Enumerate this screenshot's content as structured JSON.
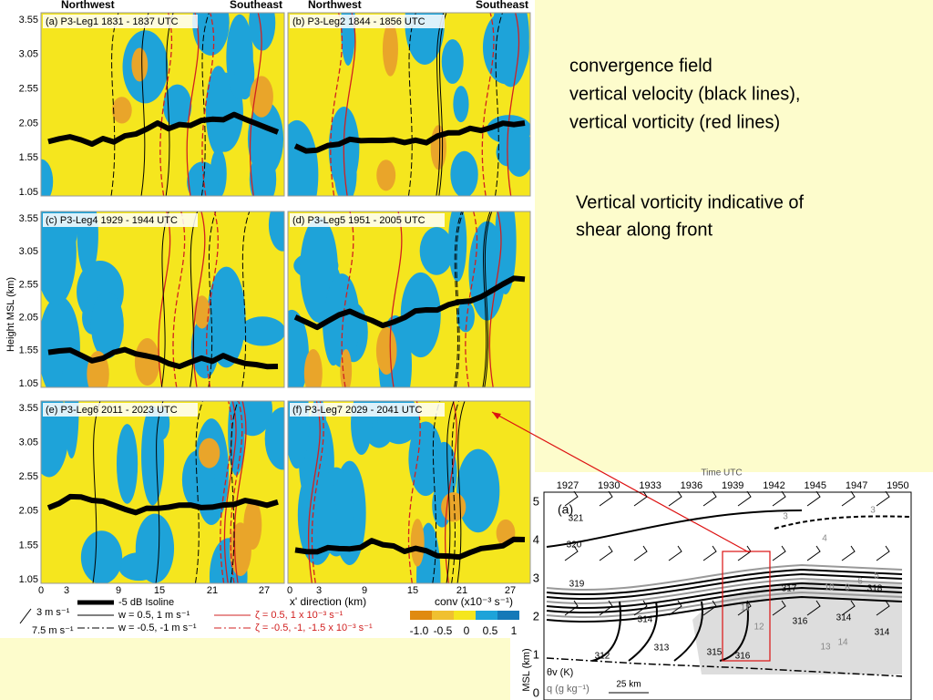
{
  "slide": {
    "caption_lines": [
      "convergence field",
      "vertical velocity (black lines),",
      "vertical vorticity (red lines)"
    ],
    "note_lines": [
      "Vertical vorticity indicative of",
      "shear along front"
    ]
  },
  "figure": {
    "headers": [
      "Northwest",
      "Southeast"
    ],
    "panels": [
      "(a) P3-Leg1 1831 - 1837 UTC",
      "(b) P3-Leg2 1844 - 1856 UTC",
      "(c) P3-Leg4 1929 - 1944 UTC",
      "(d) P3-Leg5 1951 - 2005 UTC",
      "(e) P3-Leg6 2011 - 2023 UTC",
      "(f) P3-Leg7 2029 - 2041 UTC"
    ],
    "y_label": "Height MSL (km)",
    "y_ticks": [
      "3.55",
      "3.05",
      "2.55",
      "2.05",
      "1.55",
      "1.05"
    ],
    "x_ticks": [
      "0",
      "3",
      "9",
      "15",
      "21",
      "27"
    ],
    "x_label": "x' direction (km)",
    "legend": [
      "3 m s⁻¹",
      "7.5 m s⁻¹",
      "-5 dB Isoline",
      "w = 0.5, 1 m s⁻¹",
      "w = -0.5, -1 m s⁻¹",
      "ζ = 0.5, 1 x 10⁻³ s⁻¹",
      "ζ = -0.5, -1, -1.5 x 10⁻³ s⁻¹"
    ],
    "colorbar_label": "conv (x10⁻³ s⁻¹)",
    "colorbar_ticks": [
      "-1.0",
      "-0.5",
      "0",
      "0.5",
      "1"
    ]
  },
  "inset": {
    "time_label": "Time UTC",
    "time_ticks": [
      "1927",
      "1930",
      "1933",
      "1936",
      "1939",
      "1942",
      "1945",
      "1947",
      "1950"
    ],
    "panel_label": "(a)",
    "y_ticks": [
      "5",
      "4",
      "3",
      "2",
      "1",
      "0"
    ],
    "y_label": "MSL (km)",
    "contour_labels": [
      "321",
      "320",
      "319",
      "314",
      "313",
      "312",
      "315",
      "316",
      "317",
      "318",
      "316",
      "314",
      "314",
      "3",
      "4",
      "10",
      "8",
      "6",
      "5",
      "11",
      "12",
      "13",
      "14",
      "3"
    ],
    "theta_label": "θv (K)",
    "q_label": "q (g kg⁻¹)",
    "scale_label": "25 km"
  }
}
